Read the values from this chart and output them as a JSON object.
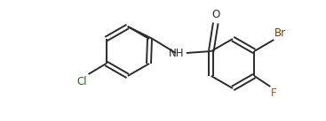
{
  "background_color": "#ffffff",
  "line_color": "#2b2b2b",
  "line_width": 1.4,
  "font_size": 8.5,
  "Br_color": "#7a3800",
  "Cl_color": "#1a6b1a",
  "F_color": "#b35900",
  "NH_color": "#2b2b2b",
  "O_color": "#2b2b2b",
  "fig_w": 3.67,
  "fig_h": 1.37,
  "dpi": 100,
  "xlim": [
    0,
    367
  ],
  "ylim": [
    0,
    137
  ]
}
